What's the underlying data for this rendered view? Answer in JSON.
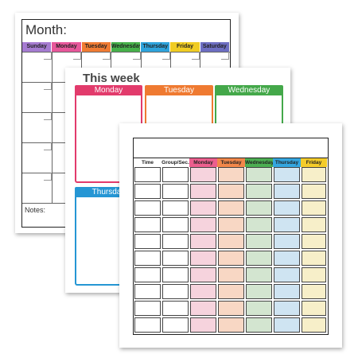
{
  "monthly": {
    "label": "Month:",
    "notes_label": "Notes:",
    "days": [
      {
        "name": "Sunday",
        "color": "#a57bd1"
      },
      {
        "name": "Monday",
        "color": "#e7579a"
      },
      {
        "name": "Tuesday",
        "color": "#f07b33"
      },
      {
        "name": "Wednesday",
        "color": "#46b04a"
      },
      {
        "name": "Thursday",
        "color": "#2ea3dc"
      },
      {
        "name": "Friday",
        "color": "#f0cc23"
      },
      {
        "name": "Saturday",
        "color": "#6d6ec2"
      }
    ]
  },
  "weekly": {
    "title": "This week",
    "columns": [
      {
        "name": "Monday",
        "color": "#e23b6c"
      },
      {
        "name": "Tuesday",
        "color": "#ef7a31"
      },
      {
        "name": "Wednesday",
        "color": "#44a84a"
      },
      {
        "name": "Thursday",
        "color": "#2596d4"
      }
    ]
  },
  "schedule": {
    "columns": [
      {
        "name": "Time",
        "color": "#ffffff",
        "fill": "#ffffff"
      },
      {
        "name": "Group/Sec.",
        "color": "#ffffff",
        "fill": "#ffffff"
      },
      {
        "name": "Monday",
        "color": "#ec5f8e",
        "fill": "#f6d3dd"
      },
      {
        "name": "Tuesday",
        "color": "#f2874a",
        "fill": "#f8d7c4"
      },
      {
        "name": "Wednesday",
        "color": "#4cae52",
        "fill": "#d3e5d0"
      },
      {
        "name": "Thursday",
        "color": "#34a6df",
        "fill": "#cfe4f2"
      },
      {
        "name": "Friday",
        "color": "#f4cc2a",
        "fill": "#f7efc9"
      }
    ],
    "row_count": 10
  }
}
